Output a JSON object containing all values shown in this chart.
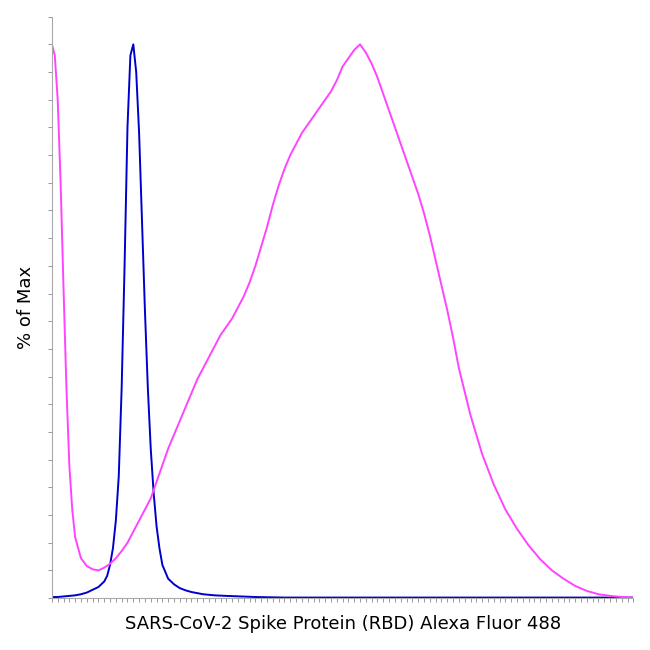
{
  "xlabel": "SARS-CoV-2 Spike Protein (RBD) Alexa Fluor 488",
  "ylabel": "% of Max",
  "background_color": "#ffffff",
  "line_color_blue": "#0000CC",
  "line_color_magenta": "#FF44FF",
  "line_width": 1.4,
  "blue_x": [
    0.0,
    0.01,
    0.02,
    0.03,
    0.04,
    0.05,
    0.06,
    0.07,
    0.08,
    0.09,
    0.095,
    0.1,
    0.105,
    0.11,
    0.115,
    0.12,
    0.125,
    0.13,
    0.135,
    0.14,
    0.145,
    0.15,
    0.155,
    0.16,
    0.165,
    0.17,
    0.175,
    0.18,
    0.185,
    0.19,
    0.2,
    0.21,
    0.22,
    0.23,
    0.24,
    0.25,
    0.26,
    0.28,
    0.3,
    0.35,
    0.4,
    0.5,
    0.6,
    0.7,
    0.8,
    0.9,
    1.0
  ],
  "blue_y": [
    0.002,
    0.002,
    0.003,
    0.004,
    0.005,
    0.007,
    0.01,
    0.015,
    0.02,
    0.03,
    0.04,
    0.06,
    0.09,
    0.14,
    0.22,
    0.38,
    0.6,
    0.85,
    0.98,
    1.0,
    0.95,
    0.84,
    0.68,
    0.52,
    0.38,
    0.27,
    0.19,
    0.13,
    0.09,
    0.06,
    0.035,
    0.025,
    0.018,
    0.014,
    0.011,
    0.009,
    0.007,
    0.005,
    0.004,
    0.002,
    0.001,
    0.001,
    0.001,
    0.001,
    0.001,
    0.001,
    0.001
  ],
  "magenta_x": [
    0.0,
    0.005,
    0.01,
    0.015,
    0.02,
    0.025,
    0.03,
    0.035,
    0.04,
    0.05,
    0.06,
    0.07,
    0.08,
    0.09,
    0.1,
    0.11,
    0.12,
    0.13,
    0.14,
    0.15,
    0.16,
    0.17,
    0.175,
    0.18,
    0.185,
    0.19,
    0.195,
    0.2,
    0.21,
    0.22,
    0.23,
    0.24,
    0.25,
    0.26,
    0.27,
    0.28,
    0.29,
    0.3,
    0.31,
    0.32,
    0.33,
    0.34,
    0.35,
    0.36,
    0.37,
    0.38,
    0.39,
    0.4,
    0.41,
    0.42,
    0.43,
    0.44,
    0.45,
    0.46,
    0.47,
    0.48,
    0.49,
    0.5,
    0.51,
    0.52,
    0.53,
    0.54,
    0.55,
    0.56,
    0.57,
    0.58,
    0.59,
    0.6,
    0.61,
    0.62,
    0.63,
    0.64,
    0.65,
    0.66,
    0.67,
    0.68,
    0.69,
    0.7,
    0.72,
    0.74,
    0.76,
    0.78,
    0.8,
    0.82,
    0.84,
    0.86,
    0.88,
    0.9,
    0.92,
    0.94,
    0.96,
    0.98,
    1.0
  ],
  "magenta_y": [
    1.0,
    0.98,
    0.9,
    0.75,
    0.56,
    0.38,
    0.24,
    0.16,
    0.11,
    0.072,
    0.058,
    0.052,
    0.05,
    0.055,
    0.062,
    0.072,
    0.085,
    0.1,
    0.12,
    0.14,
    0.16,
    0.18,
    0.195,
    0.21,
    0.225,
    0.24,
    0.255,
    0.27,
    0.295,
    0.32,
    0.345,
    0.37,
    0.395,
    0.415,
    0.435,
    0.455,
    0.475,
    0.49,
    0.505,
    0.525,
    0.545,
    0.57,
    0.6,
    0.635,
    0.67,
    0.71,
    0.745,
    0.775,
    0.8,
    0.82,
    0.84,
    0.855,
    0.87,
    0.885,
    0.9,
    0.915,
    0.935,
    0.96,
    0.975,
    0.99,
    1.0,
    0.985,
    0.965,
    0.94,
    0.91,
    0.88,
    0.85,
    0.82,
    0.79,
    0.76,
    0.73,
    0.695,
    0.655,
    0.61,
    0.565,
    0.52,
    0.47,
    0.415,
    0.33,
    0.26,
    0.205,
    0.16,
    0.125,
    0.095,
    0.07,
    0.05,
    0.035,
    0.022,
    0.013,
    0.007,
    0.004,
    0.002,
    0.001
  ],
  "xlim": [
    0.0,
    1.0
  ],
  "ylim": [
    0.0,
    1.05
  ]
}
